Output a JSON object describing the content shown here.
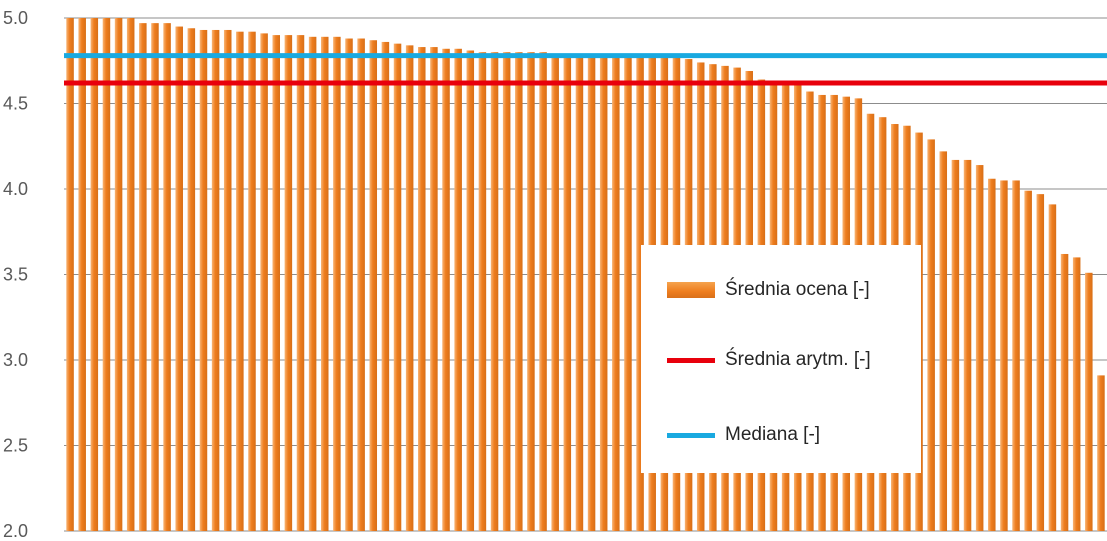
{
  "chart_data": {
    "type": "bar",
    "title": "",
    "xlabel": "",
    "ylabel": "",
    "ylim": [
      2.0,
      5.0
    ],
    "y_ticks": [
      "2.0",
      "2.5",
      "3.0",
      "3.5",
      "4.0",
      "4.5",
      "5.0"
    ],
    "grid": true,
    "legend_position": "center-right",
    "series": [
      {
        "name": "Średnia ocena [-]",
        "kind": "bar",
        "color": "#ee7d1e",
        "values": [
          5.0,
          5.0,
          5.0,
          5.0,
          5.0,
          5.0,
          4.97,
          4.97,
          4.97,
          4.95,
          4.94,
          4.93,
          4.93,
          4.93,
          4.92,
          4.92,
          4.91,
          4.9,
          4.9,
          4.9,
          4.89,
          4.89,
          4.89,
          4.88,
          4.88,
          4.87,
          4.86,
          4.85,
          4.84,
          4.83,
          4.83,
          4.82,
          4.82,
          4.81,
          4.8,
          4.8,
          4.8,
          4.8,
          4.8,
          4.8,
          4.79,
          4.79,
          4.79,
          4.78,
          4.78,
          4.78,
          4.78,
          4.77,
          4.77,
          4.77,
          4.77,
          4.76,
          4.74,
          4.73,
          4.72,
          4.71,
          4.69,
          4.64,
          4.61,
          4.61,
          4.61,
          4.57,
          4.55,
          4.55,
          4.54,
          4.53,
          4.44,
          4.42,
          4.38,
          4.37,
          4.33,
          4.29,
          4.22,
          4.17,
          4.17,
          4.14,
          4.06,
          4.05,
          4.05,
          3.99,
          3.97,
          3.91,
          3.62,
          3.6,
          3.51,
          2.91
        ]
      },
      {
        "name": "Średnia arytm. [-]",
        "kind": "line",
        "color": "#e8000c",
        "value": 4.62
      },
      {
        "name": "Mediana [-]",
        "kind": "line",
        "color": "#19a9e0",
        "value": 4.78
      }
    ]
  }
}
